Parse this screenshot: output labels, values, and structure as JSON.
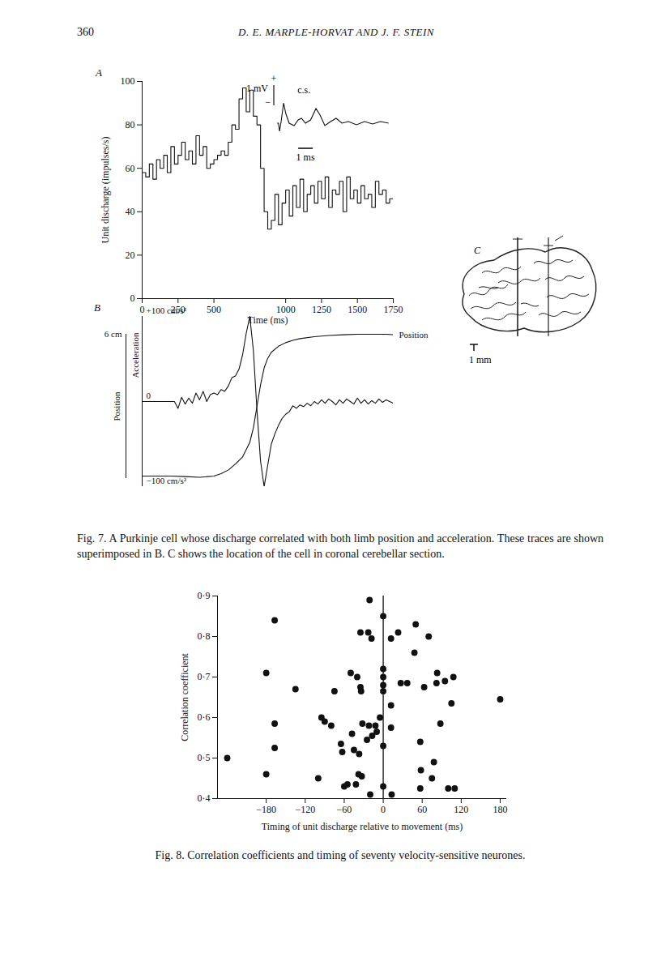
{
  "page": {
    "number": "360",
    "running_head": "D. E. MARPLE-HORVAT AND J. F. STEIN"
  },
  "captions": {
    "fig7": "Fig. 7. A Purkinje cell whose discharge correlated with both limb position and acceleration. These traces are shown superimposed in B. C shows the location of the cell in coronal cerebellar section.",
    "fig8": "Fig. 8. Correlation coefficients and timing of seventy velocity-sensitive neurones."
  },
  "chart_data": [
    {
      "type": "step",
      "panel": "A",
      "x_label": "Time (ms)",
      "y_label": "Unit discharge (impulses/s)",
      "bins": [
        0,
        25,
        50,
        75,
        100,
        125,
        150,
        175,
        200,
        225,
        250,
        275,
        300,
        325,
        350,
        375,
        400,
        425,
        450,
        475,
        500,
        525,
        550,
        575,
        600,
        625,
        650,
        675,
        700,
        725,
        750,
        775,
        800,
        825,
        850,
        875,
        900,
        925,
        950,
        975,
        1000,
        1025,
        1050,
        1075,
        1100,
        1125,
        1150,
        1175,
        1200,
        1225,
        1250,
        1275,
        1300,
        1325,
        1350,
        1375,
        1400,
        1425,
        1450,
        1475,
        1500,
        1525,
        1550,
        1575,
        1600,
        1625,
        1650,
        1675,
        1700,
        1725,
        1750
      ],
      "values": [
        58,
        56,
        62,
        55,
        64,
        60,
        66,
        58,
        70,
        62,
        66,
        72,
        64,
        68,
        62,
        75,
        66,
        70,
        60,
        62,
        64,
        66,
        68,
        66,
        72,
        80,
        78,
        92,
        97,
        86,
        96,
        84,
        80,
        60,
        40,
        32,
        36,
        48,
        34,
        44,
        50,
        38,
        52,
        42,
        55,
        40,
        48,
        52,
        44,
        54,
        46,
        56,
        42,
        50,
        48,
        54,
        40,
        56,
        46,
        50,
        44,
        52,
        46,
        48,
        42,
        54,
        48,
        50,
        44,
        46
      ],
      "xlim": [
        0,
        1750
      ],
      "ylim": [
        0,
        100
      ],
      "xticks": [
        0,
        250,
        500,
        1000,
        1250,
        1500,
        1750
      ],
      "yticks": [
        0,
        20,
        40,
        60,
        80,
        100
      ],
      "color": "#111111",
      "inset": {
        "label": "c.s.",
        "polarity_labels": [
          "+",
          "−"
        ],
        "scale_mv": 1,
        "scale_mv_label": "1 mV",
        "scale_ms": 1,
        "scale_ms_label": "1 ms",
        "t_ms": [
          0,
          0.1,
          0.17,
          0.28,
          0.45,
          0.6,
          0.83,
          1.17,
          1.45,
          1.67,
          1.95,
          2.3,
          2.67,
          2.95,
          3.28,
          3.67,
          4.05,
          4.45,
          4.9,
          5.45,
          6,
          6.55,
          7.1,
          7.65
        ],
        "mv": [
          0,
          0,
          -0.4,
          0.08,
          1.0,
          0.48,
          0,
          -0.12,
          0.16,
          0.24,
          0,
          0.16,
          0.72,
          0.4,
          -0.12,
          0.08,
          0.24,
          0,
          0.08,
          -0.08,
          0.08,
          -0.04,
          0.08,
          0
        ]
      }
    },
    {
      "type": "line",
      "panel": "B",
      "xlim": [
        0,
        1750
      ],
      "ylim": [
        -100,
        100
      ],
      "yticks": [
        {
          "value": 100,
          "label": "+100 cm/s²"
        },
        {
          "value": 0,
          "label": "0"
        },
        {
          "value": -100,
          "label": "−100 cm/s²"
        }
      ],
      "y2lim": [
        0,
        6
      ],
      "y2ticks": [
        {
          "value": 6,
          "label": "6 cm"
        }
      ],
      "y2_label": "Position",
      "series": [
        {
          "name": "Acceleration",
          "color": "#111111",
          "x": [
            0,
            25,
            50,
            75,
            100,
            125,
            150,
            175,
            200,
            225,
            250,
            275,
            300,
            325,
            350,
            375,
            400,
            425,
            450,
            475,
            500,
            525,
            550,
            575,
            600,
            625,
            650,
            675,
            700,
            725,
            750,
            775,
            800,
            825,
            850,
            875,
            900,
            925,
            950,
            975,
            1000,
            1025,
            1050,
            1075,
            1100,
            1125,
            1150,
            1175,
            1200,
            1225,
            1250,
            1275,
            1300,
            1325,
            1350,
            1375,
            1400,
            1425,
            1450,
            1475,
            1500,
            1525,
            1550,
            1575,
            1600,
            1625,
            1650,
            1675,
            1700,
            1725,
            1750
          ],
          "values": [
            0,
            0,
            0,
            0,
            0,
            0,
            0,
            0,
            0,
            0,
            -8,
            5,
            -3,
            4,
            -2,
            10,
            2,
            12,
            0,
            8,
            10,
            8,
            14,
            12,
            18,
            28,
            30,
            38,
            55,
            80,
            100,
            60,
            -10,
            -70,
            -100,
            -75,
            -50,
            -38,
            -28,
            -20,
            -15,
            -12,
            -5,
            -8,
            -4,
            -6,
            -2,
            -5,
            0,
            -3,
            2,
            -2,
            3,
            0,
            -4,
            2,
            -2,
            3,
            0,
            -3,
            4,
            -2,
            2,
            -3,
            1,
            -2,
            3,
            -1,
            2,
            0,
            -2
          ]
        },
        {
          "name": "Position",
          "color": "#111111",
          "axis": "y2",
          "x": [
            0,
            100,
            200,
            300,
            400,
            500,
            550,
            600,
            650,
            700,
            750,
            775,
            800,
            825,
            850,
            875,
            900,
            950,
            1000,
            1050,
            1100,
            1200,
            1300,
            1400,
            1500,
            1600,
            1700,
            1750
          ],
          "values": [
            0.1,
            0.1,
            0.1,
            0.08,
            0.05,
            0.1,
            0.2,
            0.35,
            0.6,
            0.9,
            1.5,
            2.1,
            3.0,
            3.9,
            4.6,
            5.0,
            5.25,
            5.5,
            5.65,
            5.75,
            5.82,
            5.9,
            5.95,
            5.98,
            6.0,
            6.0,
            6.0,
            5.98
          ]
        }
      ]
    },
    {
      "type": "diagram",
      "panel": "C",
      "scale_bar_label": "1 mm"
    },
    {
      "type": "scatter",
      "x_label": "Timing of unit discharge relative to movement (ms)",
      "y_label": "Correlation coefficient",
      "x": [
        -240,
        -180,
        -180,
        -167,
        -167,
        -167,
        -135,
        -100,
        -95,
        -90,
        -80,
        -75,
        -65,
        -63,
        -60,
        -55,
        -50,
        -48,
        -45,
        -42,
        -40,
        -38,
        -37,
        -35,
        -35,
        -34,
        -33,
        -32,
        -25,
        -23,
        -22,
        -21,
        -20,
        -18,
        -17,
        -12,
        -10,
        -5,
        0,
        0,
        0,
        0,
        0,
        0,
        0,
        12,
        12,
        12,
        13,
        23,
        27,
        37,
        48,
        50,
        57,
        58,
        57,
        63,
        70,
        75,
        78,
        82,
        83,
        88,
        95,
        100,
        105,
        108,
        110,
        180
      ],
      "values": [
        0.5,
        0.71,
        0.46,
        0.84,
        0.585,
        0.525,
        0.67,
        0.45,
        0.6,
        0.59,
        0.58,
        0.665,
        0.535,
        0.515,
        0.43,
        0.435,
        0.71,
        0.56,
        0.52,
        0.435,
        0.7,
        0.46,
        0.51,
        0.675,
        0.81,
        0.665,
        0.455,
        0.585,
        0.545,
        0.81,
        0.58,
        0.89,
        0.41,
        0.795,
        0.555,
        0.58,
        0.565,
        0.6,
        0.85,
        0.72,
        0.7,
        0.68,
        0.665,
        0.53,
        0.43,
        0.795,
        0.63,
        0.575,
        0.41,
        0.81,
        0.685,
        0.685,
        0.76,
        0.83,
        0.54,
        0.47,
        0.425,
        0.675,
        0.8,
        0.45,
        0.49,
        0.685,
        0.71,
        0.585,
        0.69,
        0.425,
        0.635,
        0.7,
        0.425,
        0.645
      ],
      "color": "#111111",
      "marker": "circle",
      "xlim": [
        -255,
        190
      ],
      "ylim": [
        0.4,
        0.9
      ],
      "xticks": [
        {
          "value": -180,
          "label": "−180"
        },
        {
          "value": -120,
          "label": "−120"
        },
        {
          "value": -60,
          "label": "−60"
        },
        0,
        60,
        120,
        180
      ],
      "yticks": [
        {
          "value": 0.4,
          "label": "0·4"
        },
        {
          "value": 0.5,
          "label": "0·5"
        },
        {
          "value": 0.6,
          "label": "0·6"
        },
        {
          "value": 0.7,
          "label": "0·7"
        },
        {
          "value": 0.8,
          "label": "0·8"
        },
        {
          "value": 0.9,
          "label": "0·9"
        }
      ],
      "reference_line_x": 0
    }
  ]
}
